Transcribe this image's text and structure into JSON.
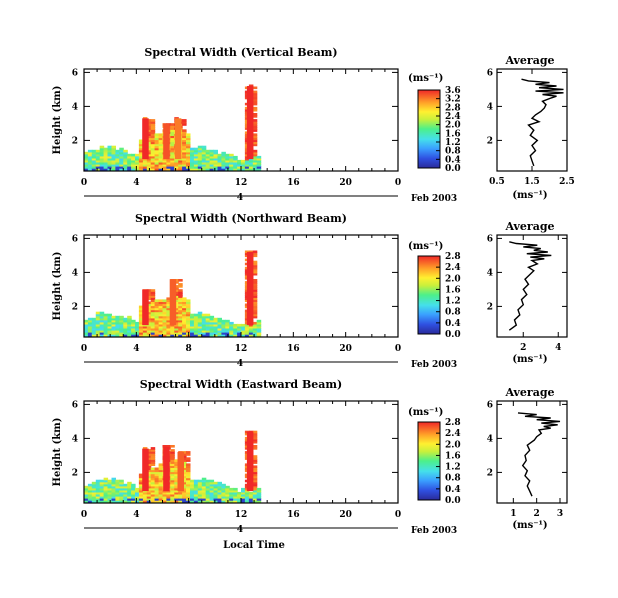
{
  "figure": {
    "xlabel": "Local Time",
    "date_label": "Feb 2003",
    "day_label": "4",
    "height_label": "Height (km)",
    "avg_title": "Average",
    "unit_label": "(ms⁻¹)"
  },
  "chart_data": [
    {
      "type": "heatmap",
      "title": "Spectral Width (Vertical Beam)",
      "ylabel": "Height (km)",
      "xlabel": "Local Time",
      "x_ticks": [
        "0",
        "4",
        "8",
        "12",
        "16",
        "20",
        "0"
      ],
      "y_ticks": [
        "2",
        "4",
        "6"
      ],
      "xlim": [
        0,
        24
      ],
      "ylim": [
        0.2,
        6.2
      ],
      "colorbar": {
        "label": "(ms⁻¹)",
        "ticks": [
          "0.0",
          "0.4",
          "0.8",
          "1.2",
          "1.6",
          "2.0",
          "2.4",
          "2.8",
          "3.2",
          "3.6"
        ],
        "range": [
          0,
          3.6
        ]
      },
      "data_extent": {
        "time": [
          0,
          13.5
        ]
      },
      "features": [
        {
          "time": 4.7,
          "top": 3.3,
          "value": 3.6
        },
        {
          "time": 6.3,
          "top": 3.0,
          "value": 3.4
        },
        {
          "time": 7.2,
          "top": 3.3,
          "value": 3.2
        },
        {
          "time": 12.7,
          "top": 5.2,
          "value": 3.6
        }
      ],
      "average_profile": {
        "title": "Average",
        "xlabel": "(ms⁻¹)",
        "x_ticks": [
          "0.5",
          "1.5",
          "2.5"
        ],
        "y_ticks": [
          "2",
          "4",
          "6"
        ],
        "xlim": [
          0.5,
          2.5
        ],
        "ylim": [
          0.2,
          6.2
        ],
        "x": [
          1.55,
          1.5,
          1.45,
          1.6,
          1.5,
          1.65,
          1.45,
          1.55,
          1.4,
          1.7,
          1.5,
          1.6,
          1.75,
          1.85,
          1.9,
          1.8,
          2.05,
          2.2,
          1.8,
          2.4,
          1.6,
          2.4,
          1.7,
          2.2,
          1.6,
          2.0,
          1.4,
          1.2
        ],
        "y": [
          0.5,
          0.8,
          1.1,
          1.4,
          1.7,
          2.0,
          2.3,
          2.6,
          2.9,
          3.1,
          3.3,
          3.5,
          3.7,
          3.9,
          4.1,
          4.3,
          4.5,
          4.6,
          4.7,
          4.8,
          4.9,
          5.0,
          5.1,
          5.2,
          5.3,
          5.4,
          5.5,
          5.6
        ]
      }
    },
    {
      "type": "heatmap",
      "title": "Spectral Width (Northward Beam)",
      "ylabel": "Height (km)",
      "xlabel": "Local Time",
      "x_ticks": [
        "0",
        "4",
        "8",
        "12",
        "16",
        "20",
        "0"
      ],
      "y_ticks": [
        "2",
        "4",
        "6"
      ],
      "xlim": [
        0,
        24
      ],
      "ylim": [
        0.2,
        6.2
      ],
      "colorbar": {
        "label": "(ms⁻¹)",
        "ticks": [
          "0.0",
          "0.4",
          "0.8",
          "1.2",
          "1.6",
          "2.0",
          "2.4",
          "2.8"
        ],
        "range": [
          0,
          2.8
        ]
      },
      "data_extent": {
        "time": [
          0,
          13.5
        ]
      },
      "features": [
        {
          "time": 4.7,
          "top": 3.0,
          "value": 2.8
        },
        {
          "time": 6.8,
          "top": 3.6,
          "value": 2.6
        },
        {
          "time": 12.7,
          "top": 5.2,
          "value": 2.8
        }
      ],
      "average_profile": {
        "title": "Average",
        "xlabel": "(ms⁻¹)",
        "x_ticks": [
          "2",
          "4"
        ],
        "y_ticks": [
          "2",
          "4",
          "6"
        ],
        "xlim": [
          0.5,
          4.5
        ],
        "ylim": [
          0.2,
          6.2
        ],
        "x": [
          1.2,
          1.6,
          1.5,
          1.8,
          1.7,
          2.0,
          1.9,
          2.2,
          2.0,
          2.3,
          2.1,
          2.4,
          2.6,
          2.3,
          2.8,
          2.5,
          3.2,
          2.4,
          3.6,
          2.2,
          3.4,
          2.6,
          3.0,
          2.0,
          2.8,
          1.6,
          1.2
        ],
        "y": [
          0.6,
          0.9,
          1.2,
          1.5,
          1.8,
          2.1,
          2.4,
          2.7,
          3.0,
          3.3,
          3.6,
          3.9,
          4.1,
          4.3,
          4.5,
          4.7,
          4.8,
          4.9,
          5.0,
          5.1,
          5.2,
          5.3,
          5.4,
          5.5,
          5.6,
          5.7,
          5.8
        ]
      }
    },
    {
      "type": "heatmap",
      "title": "Spectral Width (Eastward Beam)",
      "ylabel": "Height (km)",
      "xlabel": "Local Time",
      "x_ticks": [
        "0",
        "4",
        "8",
        "12",
        "16",
        "20",
        "0"
      ],
      "y_ticks": [
        "2",
        "4",
        "6"
      ],
      "xlim": [
        0,
        24
      ],
      "ylim": [
        0.2,
        6.2
      ],
      "colorbar": {
        "label": "(ms⁻¹)",
        "ticks": [
          "0.0",
          "0.4",
          "0.8",
          "1.2",
          "1.6",
          "2.0",
          "2.4",
          "2.8"
        ],
        "range": [
          0,
          2.8
        ]
      },
      "data_extent": {
        "time": [
          0,
          13.5
        ]
      },
      "features": [
        {
          "time": 4.7,
          "top": 3.4,
          "value": 2.8
        },
        {
          "time": 6.3,
          "top": 3.5,
          "value": 2.8
        },
        {
          "time": 7.4,
          "top": 3.2,
          "value": 2.6
        },
        {
          "time": 12.7,
          "top": 4.4,
          "value": 2.8
        }
      ],
      "average_profile": {
        "title": "Average",
        "xlabel": "(ms⁻¹)",
        "x_ticks": [
          "1",
          "2",
          "3"
        ],
        "y_ticks": [
          "2",
          "4",
          "6"
        ],
        "xlim": [
          0.3,
          3.3
        ],
        "ylim": [
          0.2,
          6.2
        ],
        "x": [
          1.8,
          1.7,
          1.6,
          1.7,
          1.5,
          1.6,
          1.4,
          1.55,
          1.5,
          1.7,
          1.6,
          1.9,
          2.0,
          2.2,
          2.1,
          2.6,
          2.3,
          2.9,
          2.2,
          3.0,
          2.0,
          2.6,
          1.5,
          2.0,
          1.2
        ],
        "y": [
          0.6,
          0.9,
          1.2,
          1.5,
          1.8,
          2.1,
          2.4,
          2.7,
          3.0,
          3.3,
          3.6,
          3.9,
          4.1,
          4.3,
          4.5,
          4.6,
          4.7,
          4.8,
          4.9,
          5.0,
          5.1,
          5.2,
          5.3,
          5.4,
          5.5
        ]
      }
    }
  ]
}
